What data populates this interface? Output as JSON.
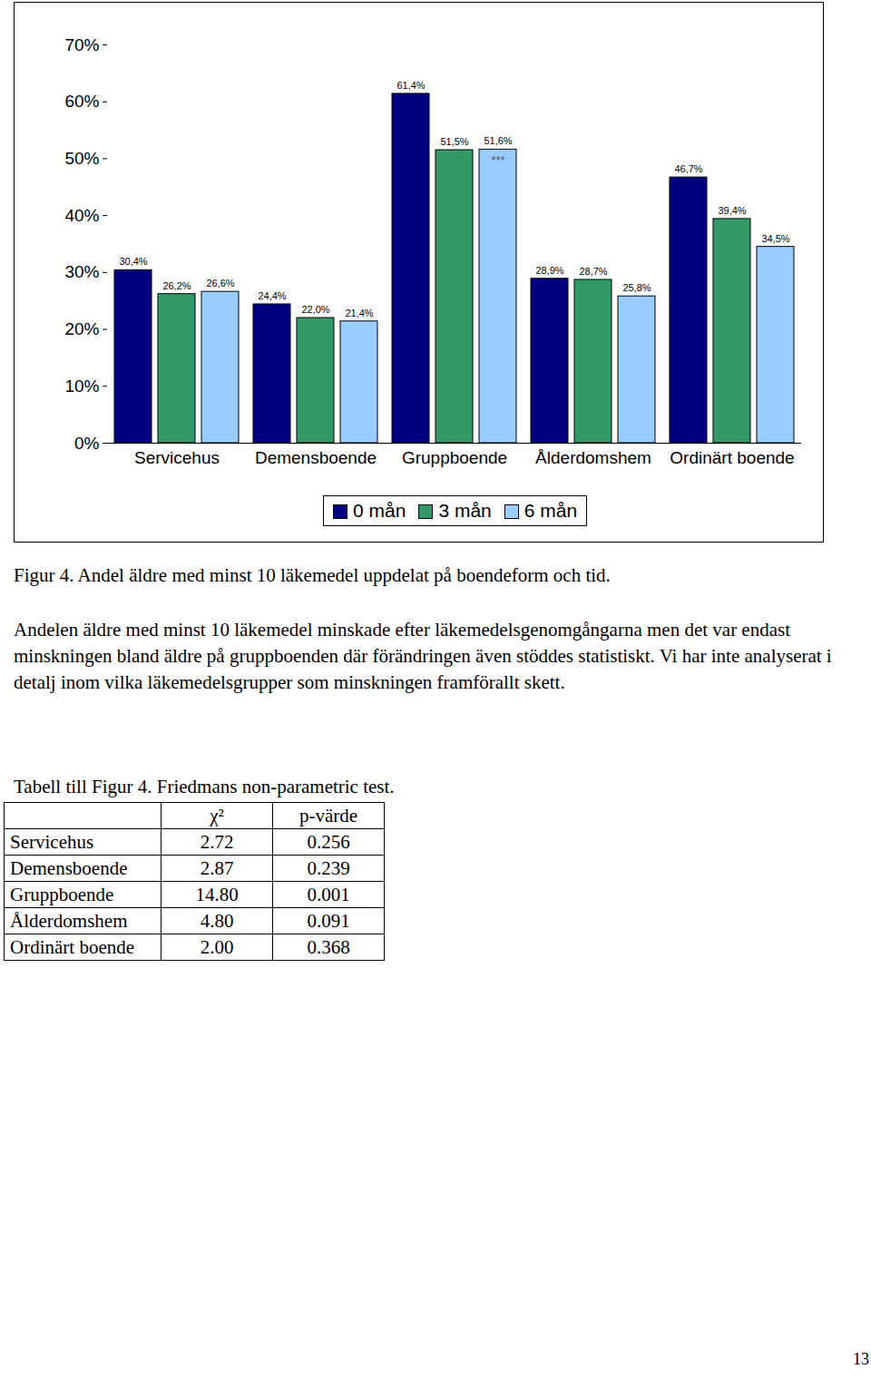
{
  "chart_data": {
    "type": "bar",
    "categories": [
      "Servicehus",
      "Demensboende",
      "Gruppboende",
      "Ålderdomshem",
      "Ordinärt boende"
    ],
    "series": [
      {
        "name": "0 mån",
        "color": "#000080",
        "values": [
          30.4,
          24.4,
          61.4,
          28.9,
          46.7
        ],
        "value_labels": [
          "30,4%",
          "24,4%",
          "61,4%",
          "28,9%",
          "46,7%"
        ]
      },
      {
        "name": "3 mån",
        "color": "#339966",
        "values": [
          26.2,
          22.0,
          51.5,
          28.7,
          39.4
        ],
        "value_labels": [
          "26,2%",
          "22,0%",
          "51,5%",
          "28,7%",
          "39,4%"
        ]
      },
      {
        "name": "6 mån",
        "color": "#99ccff",
        "values": [
          26.6,
          21.4,
          51.6,
          25.8,
          34.5
        ],
        "value_labels": [
          "26,6%",
          "21,4%",
          "51,6%",
          "25,8%",
          "34,5%"
        ]
      }
    ],
    "ylim": [
      0,
      70
    ],
    "yticks": [
      {
        "value": 0,
        "label": "0%"
      },
      {
        "value": 10,
        "label": "10%"
      },
      {
        "value": 20,
        "label": "20%"
      },
      {
        "value": 30,
        "label": "30%"
      },
      {
        "value": 40,
        "label": "40%"
      },
      {
        "value": 50,
        "label": "50%"
      },
      {
        "value": 60,
        "label": "60%"
      },
      {
        "value": 70,
        "label": "70%"
      }
    ],
    "grid": false,
    "legend": "bottom",
    "data_labels": true,
    "annotations": [
      {
        "text": "***",
        "category": "Gruppboende",
        "series": "6 mån"
      }
    ]
  },
  "caption": "Figur 4. Andel äldre med minst 10 läkemedel uppdelat på boendeform och tid.",
  "paragraph": "Andelen äldre med minst 10 läkemedel minskade efter läkemedelsgenomgångarna men det var endast minskningen bland äldre på gruppboenden där förändringen även stöddes statistiskt. Vi har inte analyserat i detalj inom vilka läkemedelsgrupper som minskningen framförallt skett.",
  "table": {
    "title": "Tabell till Figur 4. Friedmans non-parametric test.",
    "header": [
      "",
      "χ²",
      "p-värde"
    ],
    "rows": [
      [
        "Servicehus",
        "2.72",
        "0.256"
      ],
      [
        "Demensboende",
        "2.87",
        "0.239"
      ],
      [
        "Gruppboende",
        "14.80",
        "0.001"
      ],
      [
        "Ålderdomshem",
        "4.80",
        "0.091"
      ],
      [
        "Ordinärt boende",
        "2.00",
        "0.368"
      ]
    ]
  },
  "page_number": "13"
}
